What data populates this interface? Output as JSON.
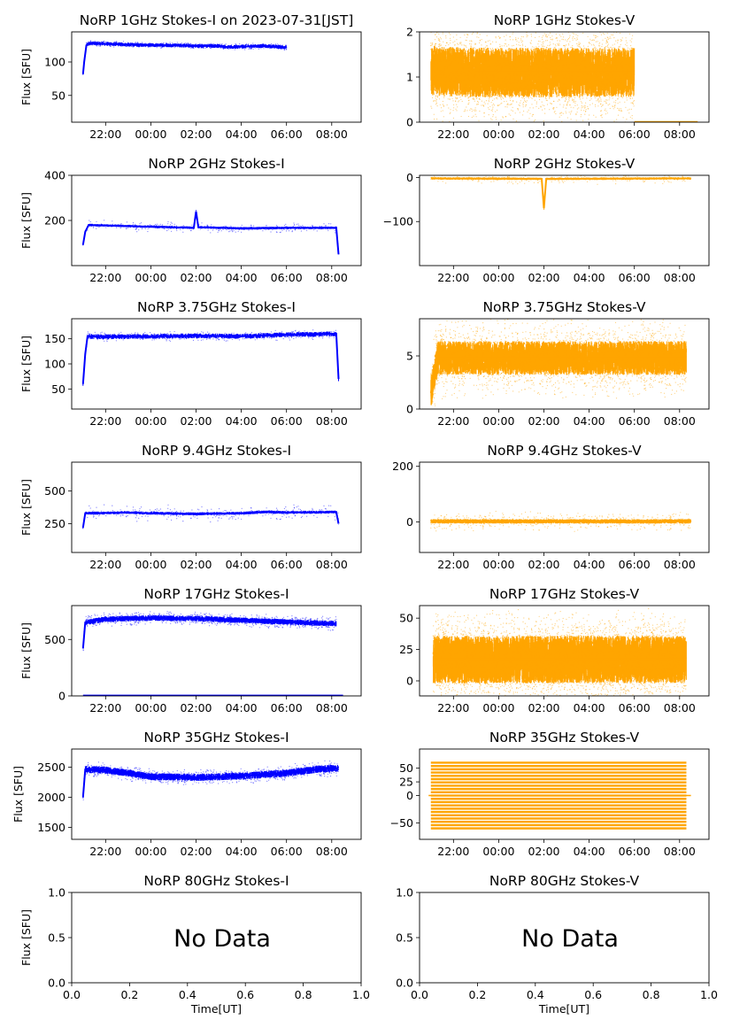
{
  "figure": {
    "panels": [
      {
        "id": "i1",
        "title": "NoRP 1GHz Stokes-I on 2023-07-31[JST]",
        "ylabel": "Flux [SFU]",
        "type": "series",
        "color": "#0000ff",
        "ylim": [
          10,
          145
        ],
        "yticks": [
          {
            "v": 50,
            "label": "50"
          },
          {
            "v": 100,
            "label": "100"
          }
        ],
        "series": [
          [
            21.0,
            82
          ],
          [
            21.05,
            100
          ],
          [
            21.15,
            125
          ],
          [
            21.3,
            128
          ],
          [
            22.0,
            127
          ],
          [
            23.0,
            126
          ],
          [
            0.0,
            125
          ],
          [
            1.0,
            125
          ],
          [
            2.0,
            124
          ],
          [
            3.0,
            124
          ],
          [
            3.5,
            122
          ],
          [
            4.0,
            123
          ],
          [
            5.0,
            124
          ],
          [
            6.0,
            122
          ]
        ],
        "noise": {
          "band": 3,
          "cloud": 2,
          "step": 0.01,
          "count": 400
        }
      },
      {
        "id": "v1",
        "title": "NoRP 1GHz Stokes-V",
        "ylabel": "",
        "type": "series",
        "color": "#ffa500",
        "ylim": [
          0,
          2
        ],
        "yticks": [
          {
            "v": 0,
            "label": "0"
          },
          {
            "v": 1,
            "label": "1"
          },
          {
            "v": 2,
            "label": "2"
          }
        ],
        "series": [
          [
            21.0,
            1.15
          ],
          [
            21.5,
            1.12
          ],
          [
            23.0,
            1.1
          ],
          [
            0.0,
            1.1
          ],
          [
            2.0,
            1.1
          ],
          [
            4.0,
            1.1
          ],
          [
            6.0,
            1.1
          ]
        ],
        "noise": {
          "band": 0.55,
          "cloud": 0.8,
          "step": 0.004,
          "count": 2500
        },
        "extra": [
          [
            6.0,
            0.01
          ],
          [
            8.8,
            0.01
          ]
        ]
      },
      {
        "id": "i2",
        "title": "NoRP 2GHz Stokes-I",
        "ylabel": "Flux [SFU]",
        "type": "series",
        "color": "#0000ff",
        "ylim": [
          0,
          400
        ],
        "yticks": [
          {
            "v": 200,
            "label": "200"
          },
          {
            "v": 400,
            "label": "400"
          }
        ],
        "series": [
          [
            21.0,
            92
          ],
          [
            21.1,
            150
          ],
          [
            21.25,
            180
          ],
          [
            22.0,
            178
          ],
          [
            0.0,
            172
          ],
          [
            1.9,
            168
          ],
          [
            2.0,
            240
          ],
          [
            2.1,
            170
          ],
          [
            4.0,
            165
          ],
          [
            6.0,
            167
          ],
          [
            8.2,
            168
          ],
          [
            8.3,
            50
          ]
        ],
        "noise": {
          "band": 6,
          "cloud": 20,
          "step": 0.01,
          "count": 300
        }
      },
      {
        "id": "v2",
        "title": "NoRP 2GHz Stokes-V",
        "ylabel": "",
        "type": "series",
        "color": "#ffa500",
        "ylim": [
          -200,
          5
        ],
        "yticks": [
          {
            "v": -100,
            "label": "−100"
          },
          {
            "v": 0,
            "label": "0"
          }
        ],
        "series": [
          [
            21.0,
            -2
          ],
          [
            1.9,
            -3
          ],
          [
            2.0,
            -70
          ],
          [
            2.1,
            -3
          ],
          [
            8.5,
            -2
          ]
        ],
        "noise": {
          "band": 3,
          "cloud": 10,
          "step": 0.01,
          "count": 200
        }
      },
      {
        "id": "i3",
        "title": "NoRP 3.75GHz Stokes-I",
        "ylabel": "Flux [SFU]",
        "type": "series",
        "color": "#0000ff",
        "ylim": [
          10,
          190
        ],
        "yticks": [
          {
            "v": 50,
            "label": "50"
          },
          {
            "v": 100,
            "label": "100"
          },
          {
            "v": 150,
            "label": "150"
          }
        ],
        "series": [
          [
            21.0,
            60
          ],
          [
            21.1,
            120
          ],
          [
            21.2,
            155
          ],
          [
            22.0,
            154
          ],
          [
            0.0,
            155
          ],
          [
            2.0,
            156
          ],
          [
            4.0,
            155
          ],
          [
            6.0,
            158
          ],
          [
            8.2,
            160
          ],
          [
            8.3,
            70
          ]
        ],
        "noise": {
          "band": 5,
          "cloud": 6,
          "step": 0.01,
          "count": 300
        }
      },
      {
        "id": "v3",
        "title": "NoRP 3.75GHz Stokes-V",
        "ylabel": "",
        "type": "series",
        "color": "#ffa500",
        "ylim": [
          0,
          8.5
        ],
        "yticks": [
          {
            "v": 0,
            "label": "0"
          },
          {
            "v": 5,
            "label": "5"
          }
        ],
        "series": [
          [
            21.0,
            1.5
          ],
          [
            21.3,
            4.8
          ],
          [
            0.0,
            4.8
          ],
          [
            2.0,
            4.8
          ],
          [
            4.0,
            4.8
          ],
          [
            6.0,
            4.8
          ],
          [
            8.3,
            4.8
          ]
        ],
        "noise": {
          "band": 1.6,
          "cloud": 2.5,
          "step": 0.004,
          "count": 2000
        }
      },
      {
        "id": "i4",
        "title": "NoRP 9.4GHz Stokes-I",
        "ylabel": "Flux [SFU]",
        "type": "series",
        "color": "#0000ff",
        "ylim": [
          30,
          720
        ],
        "yticks": [
          {
            "v": 250,
            "label": "250"
          },
          {
            "v": 500,
            "label": "500"
          }
        ],
        "series": [
          [
            21.0,
            220
          ],
          [
            21.1,
            330
          ],
          [
            23.0,
            335
          ],
          [
            0.0,
            330
          ],
          [
            2.0,
            325
          ],
          [
            4.0,
            330
          ],
          [
            5.0,
            340
          ],
          [
            6.0,
            335
          ],
          [
            8.2,
            340
          ],
          [
            8.3,
            250
          ]
        ],
        "noise": {
          "band": 12,
          "cloud": 60,
          "step": 0.01,
          "count": 300
        }
      },
      {
        "id": "v4",
        "title": "NoRP 9.4GHz Stokes-V",
        "ylabel": "",
        "type": "series",
        "color": "#ffa500",
        "ylim": [
          -110,
          215
        ],
        "yticks": [
          {
            "v": 0,
            "label": "0"
          },
          {
            "v": 200,
            "label": "200"
          }
        ],
        "series": [
          [
            21.0,
            2
          ],
          [
            2.0,
            2
          ],
          [
            5.0,
            2
          ],
          [
            8.5,
            2
          ]
        ],
        "noise": {
          "band": 8,
          "cloud": 30,
          "step": 0.005,
          "count": 500
        }
      },
      {
        "id": "i5",
        "title": "NoRP 17GHz Stokes-I",
        "ylabel": "Flux [SFU]",
        "type": "series",
        "color": "#0000ff",
        "ylim": [
          0,
          800
        ],
        "yticks": [
          {
            "v": 0,
            "label": "0"
          },
          {
            "v": 500,
            "label": "500"
          }
        ],
        "series": [
          [
            21.0,
            420
          ],
          [
            21.1,
            650
          ],
          [
            22.0,
            680
          ],
          [
            0.0,
            690
          ],
          [
            2.0,
            685
          ],
          [
            4.0,
            670
          ],
          [
            6.0,
            655
          ],
          [
            8.2,
            640
          ]
        ],
        "noise": {
          "band": 25,
          "cloud": 40,
          "step": 0.006,
          "count": 800
        },
        "extra": [
          [
            21.0,
            5
          ],
          [
            8.5,
            5
          ]
        ]
      },
      {
        "id": "v5",
        "title": "NoRP 17GHz Stokes-V",
        "ylabel": "",
        "type": "series",
        "color": "#ffa500",
        "ylim": [
          -12,
          60
        ],
        "yticks": [
          {
            "v": 0,
            "label": "0"
          },
          {
            "v": 25,
            "label": "25"
          },
          {
            "v": 50,
            "label": "50"
          }
        ],
        "series": [
          [
            21.1,
            17
          ],
          [
            0.0,
            17
          ],
          [
            4.0,
            17
          ],
          [
            8.3,
            17
          ]
        ],
        "noise": {
          "band": 19,
          "cloud": 22,
          "step": 0.003,
          "count": 3000
        }
      },
      {
        "id": "i6",
        "title": "NoRP 35GHz Stokes-I",
        "ylabel": "Flux [SFU]",
        "type": "series",
        "color": "#0000ff",
        "ylim": [
          1300,
          2800
        ],
        "yticks": [
          {
            "v": 1500,
            "label": "1500"
          },
          {
            "v": 2000,
            "label": "2000"
          },
          {
            "v": 2500,
            "label": "2500"
          }
        ],
        "series": [
          [
            21.0,
            2000
          ],
          [
            21.1,
            2460
          ],
          [
            22.0,
            2450
          ],
          [
            23.0,
            2400
          ],
          [
            0.0,
            2340
          ],
          [
            2.0,
            2330
          ],
          [
            4.0,
            2350
          ],
          [
            6.0,
            2400
          ],
          [
            7.5,
            2470
          ],
          [
            8.3,
            2480
          ]
        ],
        "noise": {
          "band": 60,
          "cloud": 80,
          "step": 0.006,
          "count": 800
        }
      },
      {
        "id": "v6",
        "title": "NoRP 35GHz Stokes-V",
        "ylabel": "",
        "type": "stripes",
        "color": "#ffa500",
        "ylim": [
          -80,
          85
        ],
        "yticks": [
          {
            "v": -50,
            "label": "−50"
          },
          {
            "v": 0,
            "label": "0"
          },
          {
            "v": 25,
            "label": "25"
          },
          {
            "v": 50,
            "label": "50"
          }
        ],
        "stripes": {
          "x0": 21.0,
          "x1": 8.3,
          "from": -60,
          "to": 62,
          "step": 6
        },
        "extra": [
          [
            20.9,
            0
          ],
          [
            8.5,
            0
          ]
        ]
      },
      {
        "id": "i7",
        "title": "NoRP 80GHz Stokes-I",
        "ylabel": "Flux [SFU]",
        "type": "empty",
        "message": "No Data"
      },
      {
        "id": "v7",
        "title": "NoRP 80GHz Stokes-V",
        "ylabel": "",
        "type": "empty",
        "message": "No Data"
      }
    ],
    "time_axis": {
      "xlim_hours": [
        20.5,
        9.3
      ],
      "ticks": [
        {
          "h": 22,
          "label": "22:00"
        },
        {
          "h": 0,
          "label": "00:00"
        },
        {
          "h": 2,
          "label": "02:00"
        },
        {
          "h": 4,
          "label": "04:00"
        },
        {
          "h": 6,
          "label": "06:00"
        },
        {
          "h": 8,
          "label": "08:00"
        }
      ]
    },
    "empty_axis": {
      "ticks": [
        "0.0",
        "0.2",
        "0.4",
        "0.6",
        "0.8",
        "1.0"
      ],
      "yticks": [
        "0.0",
        "0.5",
        "1.0"
      ],
      "xlabel": "Time[UT]"
    }
  }
}
